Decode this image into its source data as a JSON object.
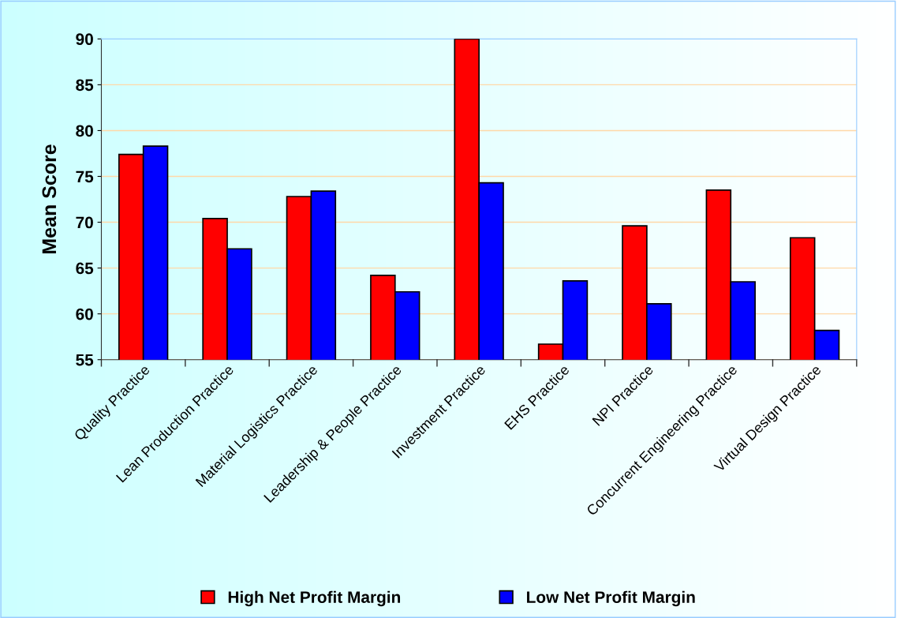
{
  "chart_data": {
    "type": "bar",
    "ylabel": "Mean Score",
    "categories": [
      "Quality Practice",
      "Lean Production Practice",
      "Material Logistics Practice",
      "Leadership & People Practice",
      "Investment Practice",
      "EHS Practice",
      "NPI Practice",
      "Concurrent Engineering Practice",
      "Virtual Design Practice"
    ],
    "series": [
      {
        "name": "High Net Profit Margin",
        "color": "#ff0000",
        "values": [
          77.4,
          70.4,
          72.8,
          64.2,
          90.0,
          56.7,
          69.6,
          73.5,
          68.3
        ]
      },
      {
        "name": "Low Net Profit Margin",
        "color": "#0000ff",
        "values": [
          78.3,
          67.1,
          73.4,
          62.4,
          74.3,
          63.6,
          61.1,
          63.5,
          58.2
        ]
      }
    ],
    "ylim": [
      55,
      90
    ],
    "yticks": [
      55,
      60,
      65,
      70,
      75,
      80,
      85,
      90
    ],
    "grid": "y",
    "legend": "bottom"
  }
}
